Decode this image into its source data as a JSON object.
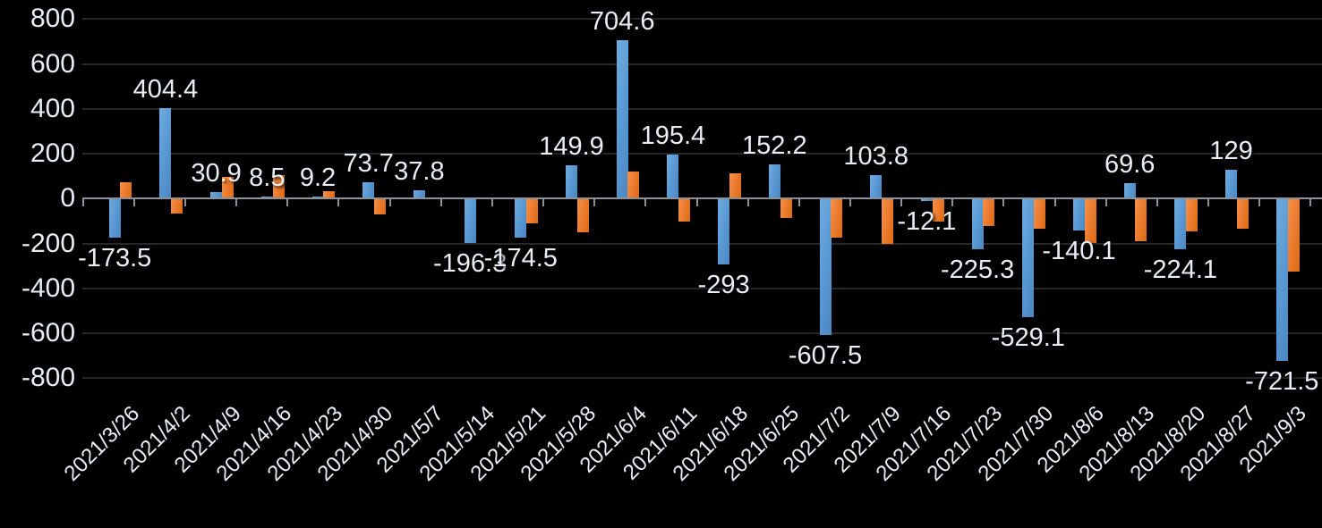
{
  "chart_data": {
    "type": "bar",
    "title": "",
    "legend_position": "none",
    "background_color": "#000000",
    "grid": true,
    "gridline_color": "#272727",
    "axis_line_color": "#8B9196",
    "label_color": "#E9EEF5",
    "categories": [
      "2021/3/26",
      "2021/4/2",
      "2021/4/9",
      "2021/4/16",
      "2021/4/23",
      "2021/4/30",
      "2021/5/7",
      "2021/5/14",
      "2021/5/21",
      "2021/5/28",
      "2021/6/4",
      "2021/6/11",
      "2021/6/18",
      "2021/6/25",
      "2021/7/2",
      "2021/7/9",
      "2021/7/16",
      "2021/7/23",
      "2021/7/30",
      "2021/8/6",
      "2021/8/13",
      "2021/8/20",
      "2021/8/27",
      "2021/9/3"
    ],
    "series": [
      {
        "name": "blue-series",
        "color": "#5B9BD5",
        "data_labels_shown": true,
        "values": [
          -173.5,
          404.4,
          30.9,
          8.5,
          9.2,
          73.7,
          37.8,
          -196.3,
          -174.5,
          149.9,
          704.6,
          195.4,
          -293,
          152.2,
          -607.5,
          103.8,
          -12.1,
          -225.3,
          -529.1,
          -140.1,
          69.6,
          -224.1,
          129,
          -721.5
        ],
        "labels": [
          "-173.5",
          "404.4",
          "30.9",
          "8.5",
          "9.2",
          "73.7",
          "37.8",
          "-196.3",
          "-174.5",
          "149.9",
          "704.6",
          "195.4",
          "-293",
          "152.2",
          "-607.5",
          "103.8",
          "-12.1",
          "-225.3",
          "-529.1",
          "-140.1",
          "69.6",
          "-224.1",
          "129",
          "-721.5"
        ]
      },
      {
        "name": "orange-series",
        "color": "#ED7D31",
        "data_labels_shown": false,
        "values_estimated": true,
        "values": [
          75,
          -65,
          98,
          105,
          35,
          -70,
          0,
          6,
          -108,
          -148,
          122,
          -100,
          112,
          -85,
          -172,
          -200,
          -102,
          -120,
          -135,
          -197,
          -191,
          -144,
          -134,
          -323
        ]
      }
    ],
    "y_axis": {
      "min": -800,
      "max": 800,
      "step": 200,
      "tick_labels": [
        "800",
        "600",
        "400",
        "200",
        "0",
        "-200",
        "-400",
        "-600",
        "-800"
      ]
    },
    "x_axis": {
      "label_rotation_deg": 45,
      "tick_marks": "between-categories"
    }
  }
}
